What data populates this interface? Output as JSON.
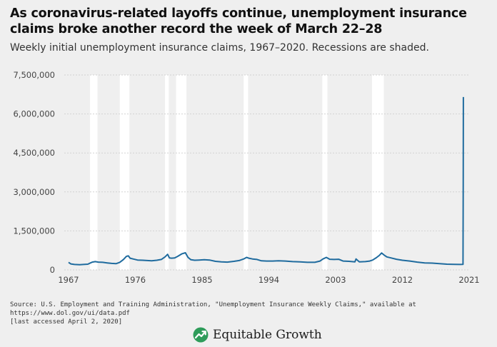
{
  "header": {
    "title": "As coronavirus-related layoffs continue, unemployment insurance claims broke another record the week of March 22–28",
    "subtitle": "Weekly initial unemployment insurance claims, 1967–2020. Recessions are shaded."
  },
  "footer": {
    "source_line1": "Source: U.S. Employment and Training Administration, \"Unemployment Insurance Weekly Claims,\" available at https://www.dol.gov/ui/data.pdf",
    "source_line2": "[last accessed April 2, 2020]",
    "brand_name": "Equitable Growth",
    "brand_icon": "growth-arrow-icon"
  },
  "colors": {
    "line": "#1f6b9e",
    "recession": "#ffffff",
    "background": "#efefef",
    "grid": "#d2d2d2",
    "brand_green": "#2e9c5a"
  },
  "chart_data": {
    "type": "line",
    "title": "Weekly initial unemployment insurance claims, 1967–2020",
    "xlabel": "",
    "ylabel": "",
    "xlim": [
      1967,
      2021
    ],
    "ylim": [
      0,
      7500000
    ],
    "grid": true,
    "x_ticks": [
      1967,
      1976,
      1985,
      1994,
      2003,
      2012,
      2021
    ],
    "x_tick_labels": [
      "1967",
      "1976",
      "1985",
      "1994",
      "2003",
      "2012",
      "2021"
    ],
    "y_ticks": [
      0,
      1500000,
      3000000,
      4500000,
      6000000,
      7500000
    ],
    "y_tick_labels": [
      "0",
      "1,500,000",
      "3,000,000",
      "4,500,000",
      "6,000,000",
      "7,500,000"
    ],
    "recessions": [
      [
        1969.9,
        1970.9
      ],
      [
        1973.9,
        1975.2
      ],
      [
        1980.0,
        1980.5
      ],
      [
        1981.5,
        1982.9
      ],
      [
        1990.6,
        1991.2
      ],
      [
        2001.2,
        2001.9
      ],
      [
        2007.9,
        2009.5
      ]
    ],
    "series": [
      {
        "name": "Weekly initial claims",
        "x": [
          1967.0,
          1967.3,
          1967.8,
          1968.5,
          1969.0,
          1969.6,
          1970.2,
          1970.6,
          1971.0,
          1971.6,
          1972.2,
          1972.8,
          1973.4,
          1973.9,
          1974.4,
          1974.8,
          1975.05,
          1975.3,
          1975.7,
          1976.3,
          1977.0,
          1977.6,
          1978.2,
          1978.9,
          1979.5,
          1980.0,
          1980.35,
          1980.6,
          1980.9,
          1981.3,
          1981.7,
          1982.3,
          1982.75,
          1983.1,
          1983.5,
          1984.0,
          1984.6,
          1985.3,
          1986.0,
          1986.8,
          1987.6,
          1988.4,
          1989.3,
          1990.0,
          1990.6,
          1991.0,
          1991.3,
          1991.8,
          1992.4,
          1993.0,
          1993.7,
          1994.5,
          1995.3,
          1996.2,
          1997.2,
          1998.2,
          1999.2,
          2000.2,
          2000.9,
          2001.3,
          2001.75,
          2002.2,
          2002.8,
          2003.4,
          2004.0,
          2004.8,
          2005.6,
          2005.75,
          2006.2,
          2007.0,
          2007.6,
          2008.0,
          2008.5,
          2008.9,
          2009.2,
          2009.5,
          2009.9,
          2010.5,
          2011.2,
          2012.0,
          2013.0,
          2014.0,
          2015.0,
          2016.0,
          2017.0,
          2018.0,
          2019.0,
          2019.8,
          2020.1,
          2020.17,
          2020.2,
          2020.22
        ],
        "values": [
          290000,
          230000,
          210000,
          200000,
          210000,
          220000,
          300000,
          320000,
          300000,
          290000,
          270000,
          250000,
          240000,
          290000,
          400000,
          520000,
          540000,
          450000,
          420000,
          380000,
          370000,
          360000,
          350000,
          370000,
          400000,
          500000,
          600000,
          460000,
          450000,
          460000,
          520000,
          620000,
          660000,
          480000,
          390000,
          370000,
          380000,
          390000,
          380000,
          330000,
          310000,
          300000,
          330000,
          360000,
          420000,
          480000,
          450000,
          420000,
          400000,
          350000,
          340000,
          340000,
          350000,
          340000,
          320000,
          310000,
          290000,
          290000,
          340000,
          420000,
          480000,
          410000,
          400000,
          410000,
          340000,
          330000,
          310000,
          420000,
          310000,
          320000,
          340000,
          380000,
          470000,
          560000,
          650000,
          580000,
          500000,
          460000,
          410000,
          370000,
          340000,
          300000,
          270000,
          260000,
          240000,
          220000,
          215000,
          210000,
          215000,
          211000,
          3300000,
          6650000
        ]
      }
    ]
  }
}
